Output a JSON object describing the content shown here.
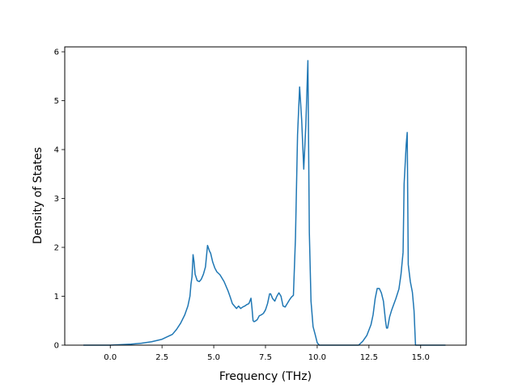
{
  "chart_data": {
    "type": "line",
    "title": "",
    "xlabel": "Frequency (THz)",
    "ylabel": "Density of States",
    "xlim": [
      -2.2,
      17.2
    ],
    "ylim": [
      0,
      6.1
    ],
    "xticks": [
      0.0,
      2.5,
      5.0,
      7.5,
      10.0,
      12.5,
      15.0
    ],
    "xtick_labels": [
      "0.0",
      "2.5",
      "5.0",
      "7.5",
      "10.0",
      "12.5",
      "15.0"
    ],
    "yticks": [
      0,
      1,
      2,
      3,
      4,
      5,
      6
    ],
    "ytick_labels": [
      "0",
      "1",
      "2",
      "3",
      "4",
      "5",
      "6"
    ],
    "grid": false,
    "line_color": "#1f77b4",
    "series": [
      {
        "x": [
          -1.3,
          -0.5,
          0.0,
          0.5,
          1.0,
          1.5,
          2.0,
          2.5,
          2.8,
          3.0,
          3.2,
          3.4,
          3.6,
          3.75,
          3.85,
          3.9,
          3.95,
          4.0,
          4.05,
          4.1,
          4.2,
          4.3,
          4.4,
          4.5,
          4.6,
          4.7,
          4.8,
          4.85,
          4.95,
          5.05,
          5.15,
          5.3,
          5.5,
          5.7,
          5.8,
          5.9,
          6.0,
          6.1,
          6.2,
          6.3,
          6.4,
          6.5,
          6.6,
          6.7,
          6.8,
          6.85,
          6.9,
          6.95,
          7.0,
          7.1,
          7.2,
          7.3,
          7.4,
          7.5,
          7.6,
          7.7,
          7.75,
          7.85,
          7.95,
          8.05,
          8.15,
          8.25,
          8.35,
          8.45,
          8.55,
          8.65,
          8.75,
          8.85,
          8.95,
          9.05,
          9.15,
          9.25,
          9.35,
          9.45,
          9.55,
          9.62,
          9.7,
          9.8,
          9.9,
          10.0,
          10.1,
          11.0,
          11.5,
          12.0,
          12.2,
          12.4,
          12.6,
          12.7,
          12.8,
          12.9,
          13.0,
          13.1,
          13.2,
          13.3,
          13.35,
          13.4,
          13.5,
          13.6,
          13.8,
          13.95,
          14.05,
          14.15,
          14.2,
          14.3,
          14.35,
          14.4,
          14.5,
          14.6,
          14.68,
          14.75,
          15.0,
          16.2
        ],
        "y": [
          0.0,
          0.0,
          0.0,
          0.01,
          0.02,
          0.04,
          0.07,
          0.12,
          0.18,
          0.22,
          0.32,
          0.45,
          0.62,
          0.8,
          1.0,
          1.25,
          1.4,
          1.85,
          1.7,
          1.45,
          1.32,
          1.3,
          1.35,
          1.45,
          1.6,
          2.04,
          1.92,
          1.88,
          1.7,
          1.58,
          1.5,
          1.44,
          1.3,
          1.1,
          0.98,
          0.85,
          0.8,
          0.75,
          0.8,
          0.75,
          0.78,
          0.8,
          0.83,
          0.85,
          0.96,
          0.75,
          0.5,
          0.48,
          0.49,
          0.52,
          0.6,
          0.62,
          0.65,
          0.72,
          0.85,
          1.05,
          1.05,
          0.95,
          0.9,
          1.0,
          1.07,
          1.0,
          0.8,
          0.78,
          0.85,
          0.92,
          0.98,
          1.02,
          2.2,
          4.3,
          5.28,
          4.6,
          3.6,
          4.5,
          5.82,
          2.3,
          0.9,
          0.38,
          0.22,
          0.05,
          0.0,
          0.0,
          0.0,
          0.0,
          0.08,
          0.2,
          0.42,
          0.62,
          0.95,
          1.16,
          1.16,
          1.07,
          0.9,
          0.5,
          0.35,
          0.35,
          0.58,
          0.72,
          0.95,
          1.15,
          1.45,
          1.9,
          3.3,
          4.1,
          4.35,
          1.65,
          1.3,
          1.08,
          0.7,
          0.0,
          0.0,
          0.0
        ]
      }
    ]
  }
}
